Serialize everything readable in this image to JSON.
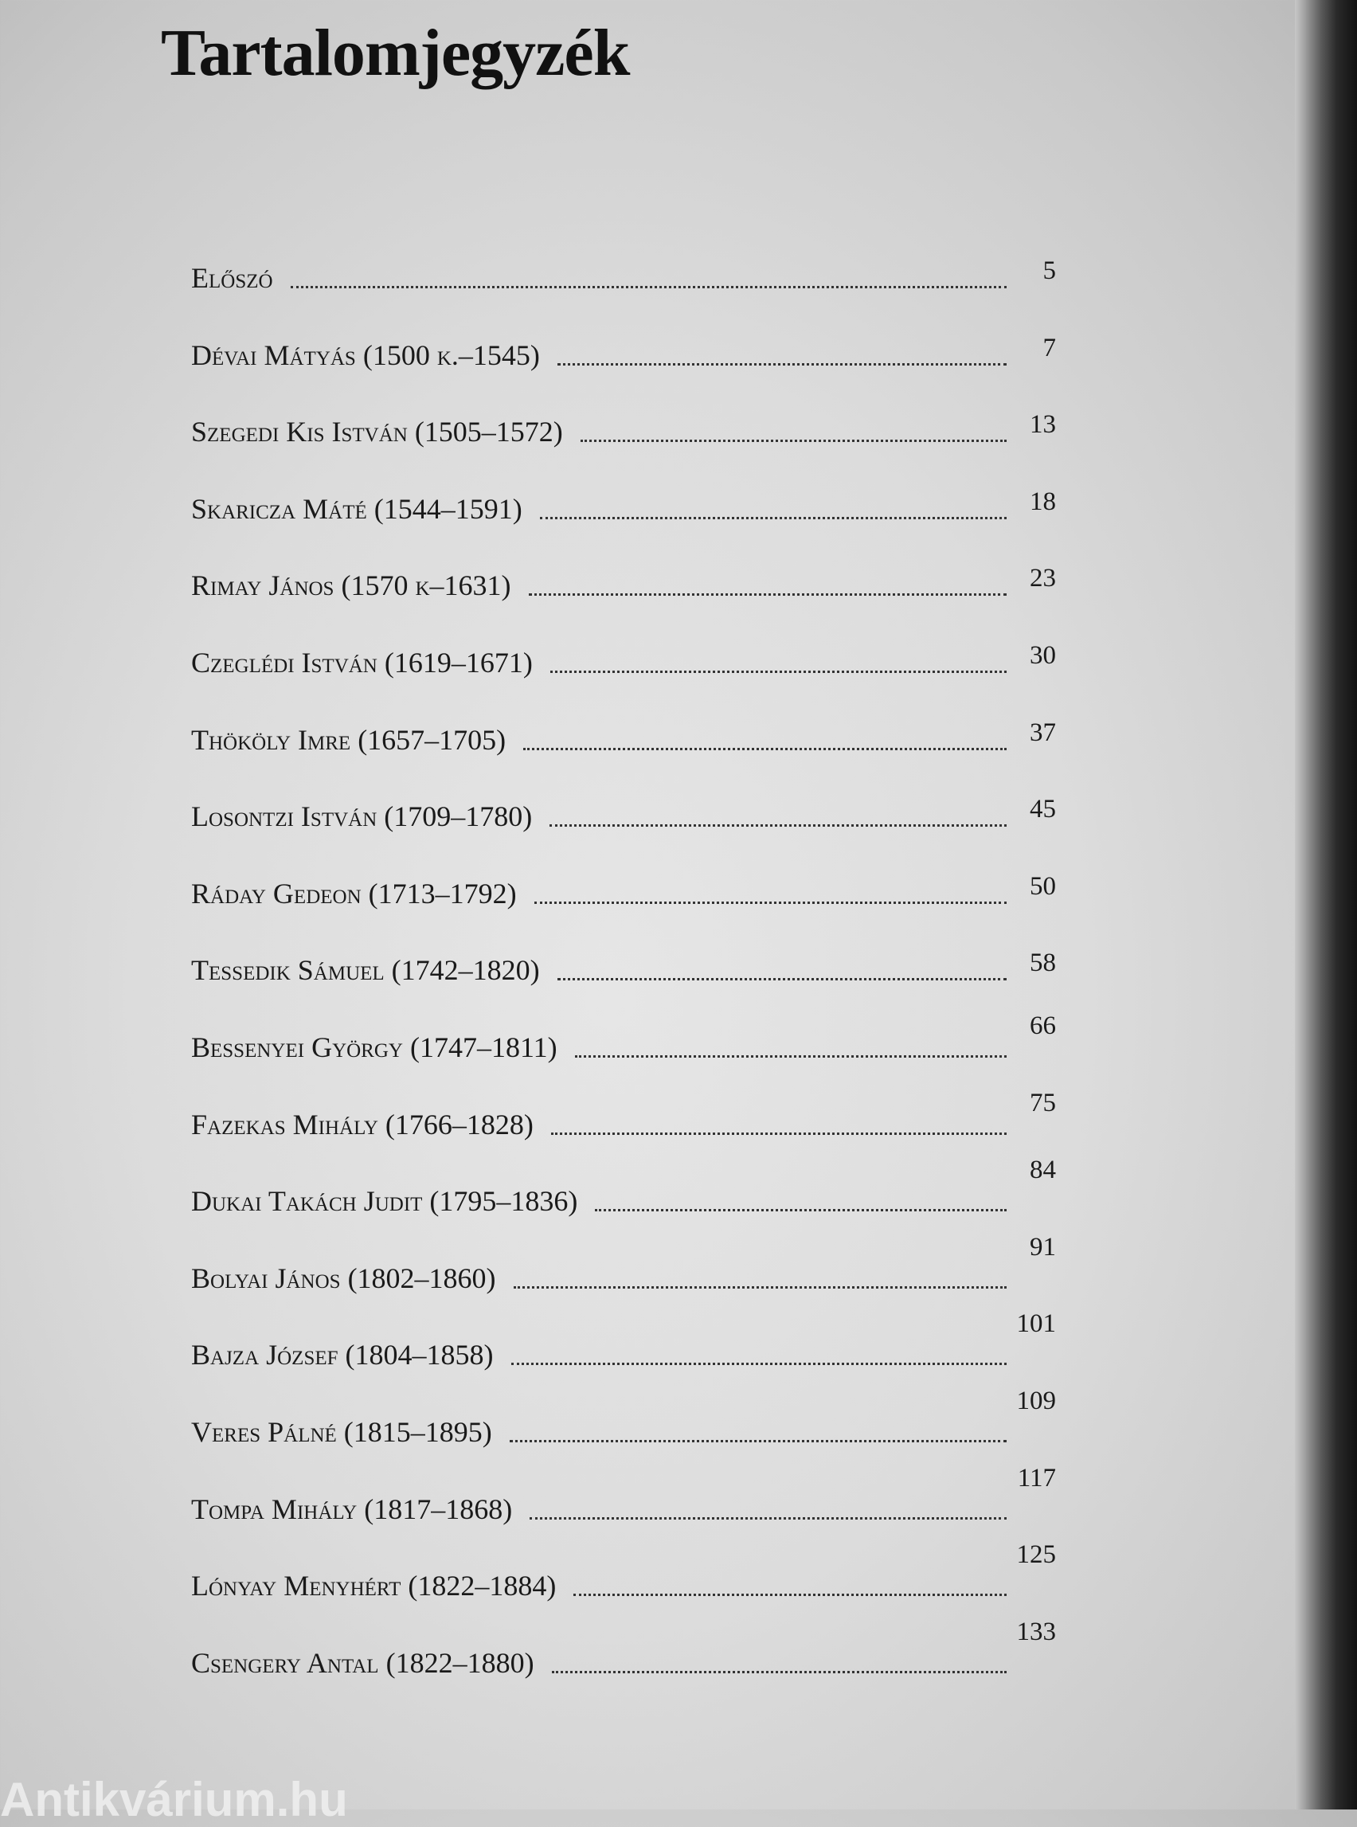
{
  "title": "Tartalomjegyzék",
  "entries": [
    {
      "name": "Előszó",
      "page": "5"
    },
    {
      "name": "Dévai Mátyás (1500 k.–1545)",
      "page": "7"
    },
    {
      "name": "Szegedi Kis István (1505–1572)",
      "page": "13"
    },
    {
      "name": "Skaricza Máté (1544–1591)",
      "page": "18"
    },
    {
      "name": "Rimay János (1570 k–1631)",
      "page": "23"
    },
    {
      "name": "Czeglédi István (1619–1671)",
      "page": "30"
    },
    {
      "name": "Thököly Imre (1657–1705)",
      "page": "37"
    },
    {
      "name": "Losontzi István (1709–1780)",
      "page": "45"
    },
    {
      "name": "Ráday Gedeon (1713–1792)",
      "page": "50"
    },
    {
      "name": "Tessedik Sámuel (1742–1820)",
      "page": "58"
    },
    {
      "name": "Bessenyei György (1747–1811)",
      "page": "66"
    },
    {
      "name": "Fazekas Mihály (1766–1828)",
      "page": "75"
    },
    {
      "name": "Dukai Takách Judit (1795–1836)",
      "page": "84"
    },
    {
      "name": "Bolyai János (1802–1860)",
      "page": "91"
    },
    {
      "name": "Bajza József (1804–1858)",
      "page": "101"
    },
    {
      "name": "Veres Pálné (1815–1895)",
      "page": "109"
    },
    {
      "name": "Tompa Mihály (1817–1868)",
      "page": "117"
    },
    {
      "name": "Lónyay Menyhért (1822–1884)",
      "page": "125"
    },
    {
      "name": "Csengery Antal (1822–1880)",
      "page": "133"
    }
  ],
  "watermark": "Antikvárium.hu"
}
